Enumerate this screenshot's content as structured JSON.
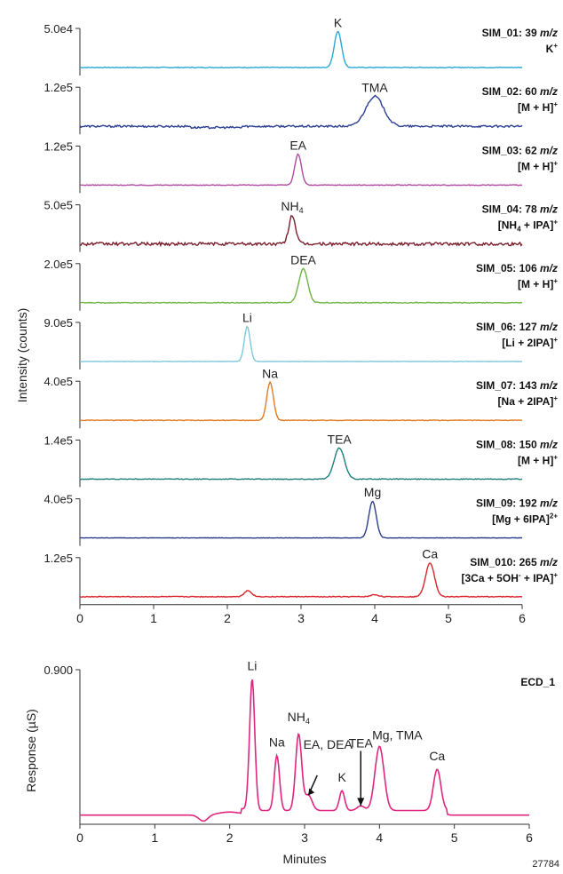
{
  "chart_data": {
    "type": "line",
    "y_axis_label_top": "Intensity (counts)",
    "y_axis_label_bottom": "Response (µS)",
    "x_axis_label": "Minutes",
    "figure_id": "27784",
    "sim_xlim": [
      0,
      6
    ],
    "ecd_xlim": [
      0,
      6
    ],
    "sim_xticks": [
      "0",
      "1",
      "2",
      "3",
      "4",
      "5",
      "6"
    ],
    "ecd_xticks": [
      "0",
      "1",
      "2",
      "3",
      "4",
      "5",
      "6"
    ],
    "sim_panels": [
      {
        "id": "SIM_01",
        "line1": "SIM_01: 39",
        "line2": "K",
        "line2_sup": "+",
        "ymax_label": "5.0e4",
        "color": "#29a8d4",
        "baseline_noise": 0.01,
        "peaks": [
          {
            "label": "K",
            "sub": "",
            "x": 3.5,
            "height": 0.9,
            "width": 0.05
          }
        ]
      },
      {
        "id": "SIM_02",
        "line1": "SIM_02: 60",
        "line2": "[M + H]",
        "line2_sup": "+",
        "ymax_label": "1.2e5",
        "color": "#2b3f91",
        "baseline_noise": 0.025,
        "peaks": [
          {
            "label": "TMA",
            "sub": "",
            "x": 4.0,
            "height": 0.75,
            "width": 0.12
          }
        ]
      },
      {
        "id": "SIM_03",
        "line1": "SIM_03: 62",
        "line2": "[M + H]",
        "line2_sup": "+",
        "ymax_label": "1.2e5",
        "color": "#b04aa4",
        "baseline_noise": 0.01,
        "peaks": [
          {
            "label": "EA",
            "sub": "",
            "x": 2.96,
            "height": 0.78,
            "width": 0.045
          }
        ]
      },
      {
        "id": "SIM_04",
        "line1": "SIM_04: 78",
        "line2": "[NH",
        "line2_sub": "4",
        "line2_end": " + IPA]",
        "line2_sup": "+",
        "ymax_label": "5.0e5",
        "color": "#7a1f2e",
        "baseline_noise": 0.04,
        "peaks": [
          {
            "label": "NH",
            "sub": "4",
            "x": 2.88,
            "height": 0.72,
            "width": 0.045
          }
        ]
      },
      {
        "id": "SIM_05",
        "line1": "SIM_05: 106",
        "line2": "[M + H]",
        "line2_sup": "+",
        "ymax_label": "2.0e5",
        "color": "#6db33f",
        "baseline_noise": 0.01,
        "peaks": [
          {
            "label": "DEA",
            "sub": "",
            "x": 3.03,
            "height": 0.85,
            "width": 0.06
          }
        ]
      },
      {
        "id": "SIM_06",
        "line1": "SIM_06: 127",
        "line2": "[Li + 2IPA]",
        "line2_sup": "+",
        "ymax_label": "9.0e5",
        "color": "#7fc8dc",
        "baseline_noise": 0.005,
        "peaks": [
          {
            "label": "Li",
            "sub": "",
            "x": 2.27,
            "height": 0.88,
            "width": 0.04
          }
        ]
      },
      {
        "id": "SIM_07",
        "line1": "SIM_07: 143",
        "line2": "[Na + 2IPA]",
        "line2_sup": "+",
        "ymax_label": "4.0e5",
        "color": "#e07b21",
        "baseline_noise": 0.008,
        "peaks": [
          {
            "label": "Na",
            "sub": "",
            "x": 2.58,
            "height": 0.95,
            "width": 0.045
          }
        ]
      },
      {
        "id": "SIM_08",
        "line1": "SIM_08: 150",
        "line2": "[M + H]",
        "line2_sup": "+",
        "ymax_label": "1.4e5",
        "color": "#1f7f7a",
        "baseline_noise": 0.01,
        "peaks": [
          {
            "label": "TEA",
            "sub": "",
            "x": 3.52,
            "height": 0.78,
            "width": 0.07
          }
        ]
      },
      {
        "id": "SIM_09",
        "line1": "SIM_09: 192",
        "line2": "[Mg + 6IPA]",
        "line2_sup": "2+",
        "ymax_label": "4.0e5",
        "color": "#2c3d8f",
        "baseline_noise": 0.005,
        "peaks": [
          {
            "label": "Mg",
            "sub": "",
            "x": 3.97,
            "height": 0.92,
            "width": 0.05
          }
        ]
      },
      {
        "id": "SIM_010",
        "line1": "SIM_010: 265",
        "line2": "[3Ca + 5OH",
        "line2_sup": "+",
        "line2_mid_sup": "-",
        "line2_end": " + IPA]",
        "ymax_label": "1.2e5",
        "color": "#d8262b",
        "baseline_noise": 0.01,
        "peaks": [
          {
            "label": "Ca",
            "sub": "",
            "x": 4.75,
            "height": 0.85,
            "width": 0.06
          }
        ],
        "extra_bumps": [
          {
            "x": 2.28,
            "height": 0.15,
            "width": 0.05
          },
          {
            "x": 4.0,
            "height": 0.05,
            "width": 0.05
          }
        ]
      }
    ],
    "m_z_label": "m/z",
    "ecd_panel": {
      "label": "ECD_1",
      "ymax_label": "0.900",
      "color": "#e0267f",
      "peaks": [
        {
          "label": "Li",
          "x": 2.3,
          "height": 0.86,
          "width": 0.035
        },
        {
          "label": "Na",
          "x": 2.63,
          "height": 0.36,
          "width": 0.035
        },
        {
          "label": "NH",
          "sub": "4",
          "x": 2.92,
          "height": 0.5,
          "width": 0.04
        },
        {
          "label": "EA, DEA",
          "x": 3.05,
          "height": 0.1,
          "width": 0.05
        },
        {
          "label": "K",
          "x": 3.5,
          "height": 0.13,
          "width": 0.035
        },
        {
          "label": "TEA",
          "x": 3.75,
          "height": 0.03,
          "width": 0.05
        },
        {
          "label": "Mg, TMA",
          "x": 4.0,
          "height": 0.42,
          "width": 0.06
        },
        {
          "label": "Ca",
          "x": 4.77,
          "height": 0.27,
          "width": 0.05
        }
      ],
      "extra_bumps": [
        {
          "x": 2.0,
          "height": 0.02,
          "width": 0.15
        },
        {
          "x": 1.65,
          "height": -0.04,
          "width": 0.06
        }
      ]
    }
  }
}
